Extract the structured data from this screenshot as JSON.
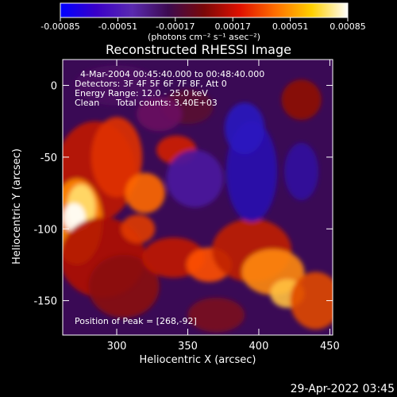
{
  "colorbar": {
    "ticks": [
      "-0.00085",
      "-0.00051",
      "-0.00017",
      "0.00017",
      "0.00051",
      "0.00085"
    ],
    "tick_values": [
      -0.00085,
      -0.00051,
      -0.00017,
      0.00017,
      0.00051,
      0.00085
    ],
    "unit_label": "(photons cm⁻² s⁻¹ asec⁻²)",
    "colors": [
      "#0000ff",
      "#3a00c8",
      "#5a2ab0",
      "#3c0a50",
      "#7a0808",
      "#e01000",
      "#ff7000",
      "#ffd000",
      "#ffffff"
    ]
  },
  "chart_data": {
    "type": "heatmap",
    "title": "Reconstructed RHESSI Image",
    "xlabel": "Heliocentric X (arcsec)",
    "ylabel": "Heliocentric Y (arcsec)",
    "xlim": [
      262,
      452
    ],
    "ylim": [
      -174,
      18
    ],
    "xticks": [
      300,
      350,
      400,
      450
    ],
    "yticks": [
      0,
      -50,
      -100,
      -150
    ],
    "peak": {
      "x": 268,
      "y": -92
    },
    "grid": false
  },
  "annotations": {
    "line1": "4-Mar-2004 00:45:40.000 to 00:48:40.000",
    "line2": "Detectors: 3F 4F 5F 6F 7F 8F, Att 0",
    "line3": "Energy Range: 12.0 - 25.0 keV",
    "line4_left": "Clean",
    "line4_right": "Total counts: 3.40E+03",
    "peak_text": "Position of Peak = [268,-92]"
  },
  "footer": {
    "timestamp": "29-Apr-2022 03:45"
  }
}
